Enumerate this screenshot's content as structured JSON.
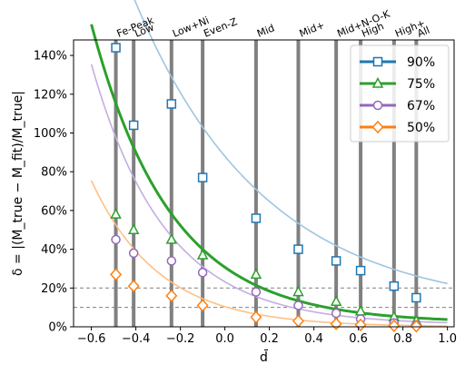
{
  "chart_data": {
    "type": "scatter",
    "xlabel": "d̄",
    "ylabel": "δ = |(M_true − M_fit)/M_true|",
    "xlim": [
      -0.68,
      1.03
    ],
    "ylim": [
      0,
      148
    ],
    "x_ticks": [
      -0.6,
      -0.4,
      -0.2,
      0.0,
      0.2,
      0.4,
      0.6,
      0.8,
      1.0
    ],
    "x_tick_labels": [
      "−0.6",
      "−0.4",
      "−0.2",
      "0.0",
      "0.2",
      "0.4",
      "0.6",
      "0.8",
      "1.0"
    ],
    "y_ticks": [
      0,
      20,
      40,
      60,
      80,
      100,
      120,
      140
    ],
    "y_tick_labels": [
      "0%",
      "20%",
      "40%",
      "60%",
      "80%",
      "100%",
      "120%",
      "140%"
    ],
    "grid": false,
    "reference_lines_y": [
      10,
      20
    ],
    "legend_position": "top-right",
    "categories": [
      {
        "name": "Fe-Peak",
        "x": -0.49
      },
      {
        "name": "Low",
        "x": -0.41
      },
      {
        "name": "Low+Ni",
        "x": -0.24
      },
      {
        "name": "Even-Z",
        "x": -0.1
      },
      {
        "name": "Mid",
        "x": 0.14
      },
      {
        "name": "Mid+",
        "x": 0.33
      },
      {
        "name": "Mid+N-O-K",
        "x": 0.5
      },
      {
        "name": "High",
        "x": 0.61
      },
      {
        "name": "High+",
        "x": 0.76
      },
      {
        "name": "All",
        "x": 0.86
      }
    ],
    "series": [
      {
        "name": "90%",
        "color": "#1f77b4",
        "fit_color": "#9ec5e0",
        "marker": "square",
        "x": [
          -0.49,
          -0.41,
          -0.24,
          -0.1,
          0.14,
          0.33,
          0.5,
          0.61,
          0.76,
          0.86
        ],
        "values": [
          144,
          104,
          115,
          77,
          56,
          40,
          34,
          29,
          21,
          15
        ],
        "fit": {
          "a": 95,
          "b": 1.72,
          "c": 8
        }
      },
      {
        "name": "75%",
        "color": "#2ca02c",
        "fit_color": "#2ca02c",
        "marker": "triangle",
        "x": [
          -0.49,
          -0.41,
          -0.24,
          -0.1,
          0.14,
          0.33,
          0.5,
          0.61,
          0.76,
          0.86
        ],
        "values": [
          58,
          50,
          45,
          37,
          27,
          18,
          13,
          8,
          5,
          3
        ],
        "fit": {
          "a": 38,
          "b": 2.8,
          "c": 2
        }
      },
      {
        "name": "67%",
        "color": "#9467bd",
        "fit_color": "#c3aee0",
        "marker": "circle",
        "x": [
          -0.49,
          -0.41,
          -0.24,
          -0.1,
          0.14,
          0.33,
          0.5,
          0.61,
          0.76,
          0.86
        ],
        "values": [
          45,
          38,
          34,
          28,
          18,
          11,
          7,
          4,
          2,
          1
        ],
        "fit": {
          "a": 30,
          "b": 3.0,
          "c": 1
        }
      },
      {
        "name": "50%",
        "color": "#ff7f0e",
        "fit_color": "#ffbf85",
        "marker": "diamond",
        "x": [
          -0.49,
          -0.41,
          -0.24,
          -0.1,
          0.14,
          0.33,
          0.5,
          0.61,
          0.76,
          0.86
        ],
        "values": [
          27,
          21,
          16,
          11,
          5,
          3,
          1.5,
          1,
          0.5,
          0.3
        ],
        "fit": {
          "a": 14.5,
          "b": 3.3,
          "c": 0
        }
      }
    ]
  }
}
